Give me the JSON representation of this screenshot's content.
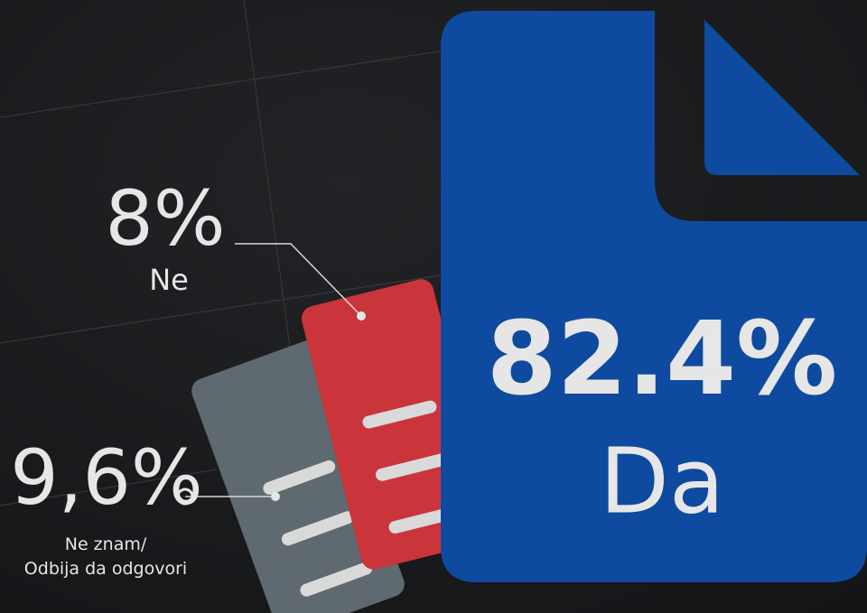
{
  "chart_data": {
    "type": "pictogram",
    "categories": [
      "Da",
      "Ne",
      "Ne znam/\nOdbija da odgovori"
    ],
    "values": [
      82.4,
      8,
      9.6
    ],
    "value_labels": [
      "82.4%",
      "8%",
      "9,6%"
    ],
    "colors": [
      "#0e4a9f",
      "#c9353b",
      "#5e6a6f"
    ]
  }
}
